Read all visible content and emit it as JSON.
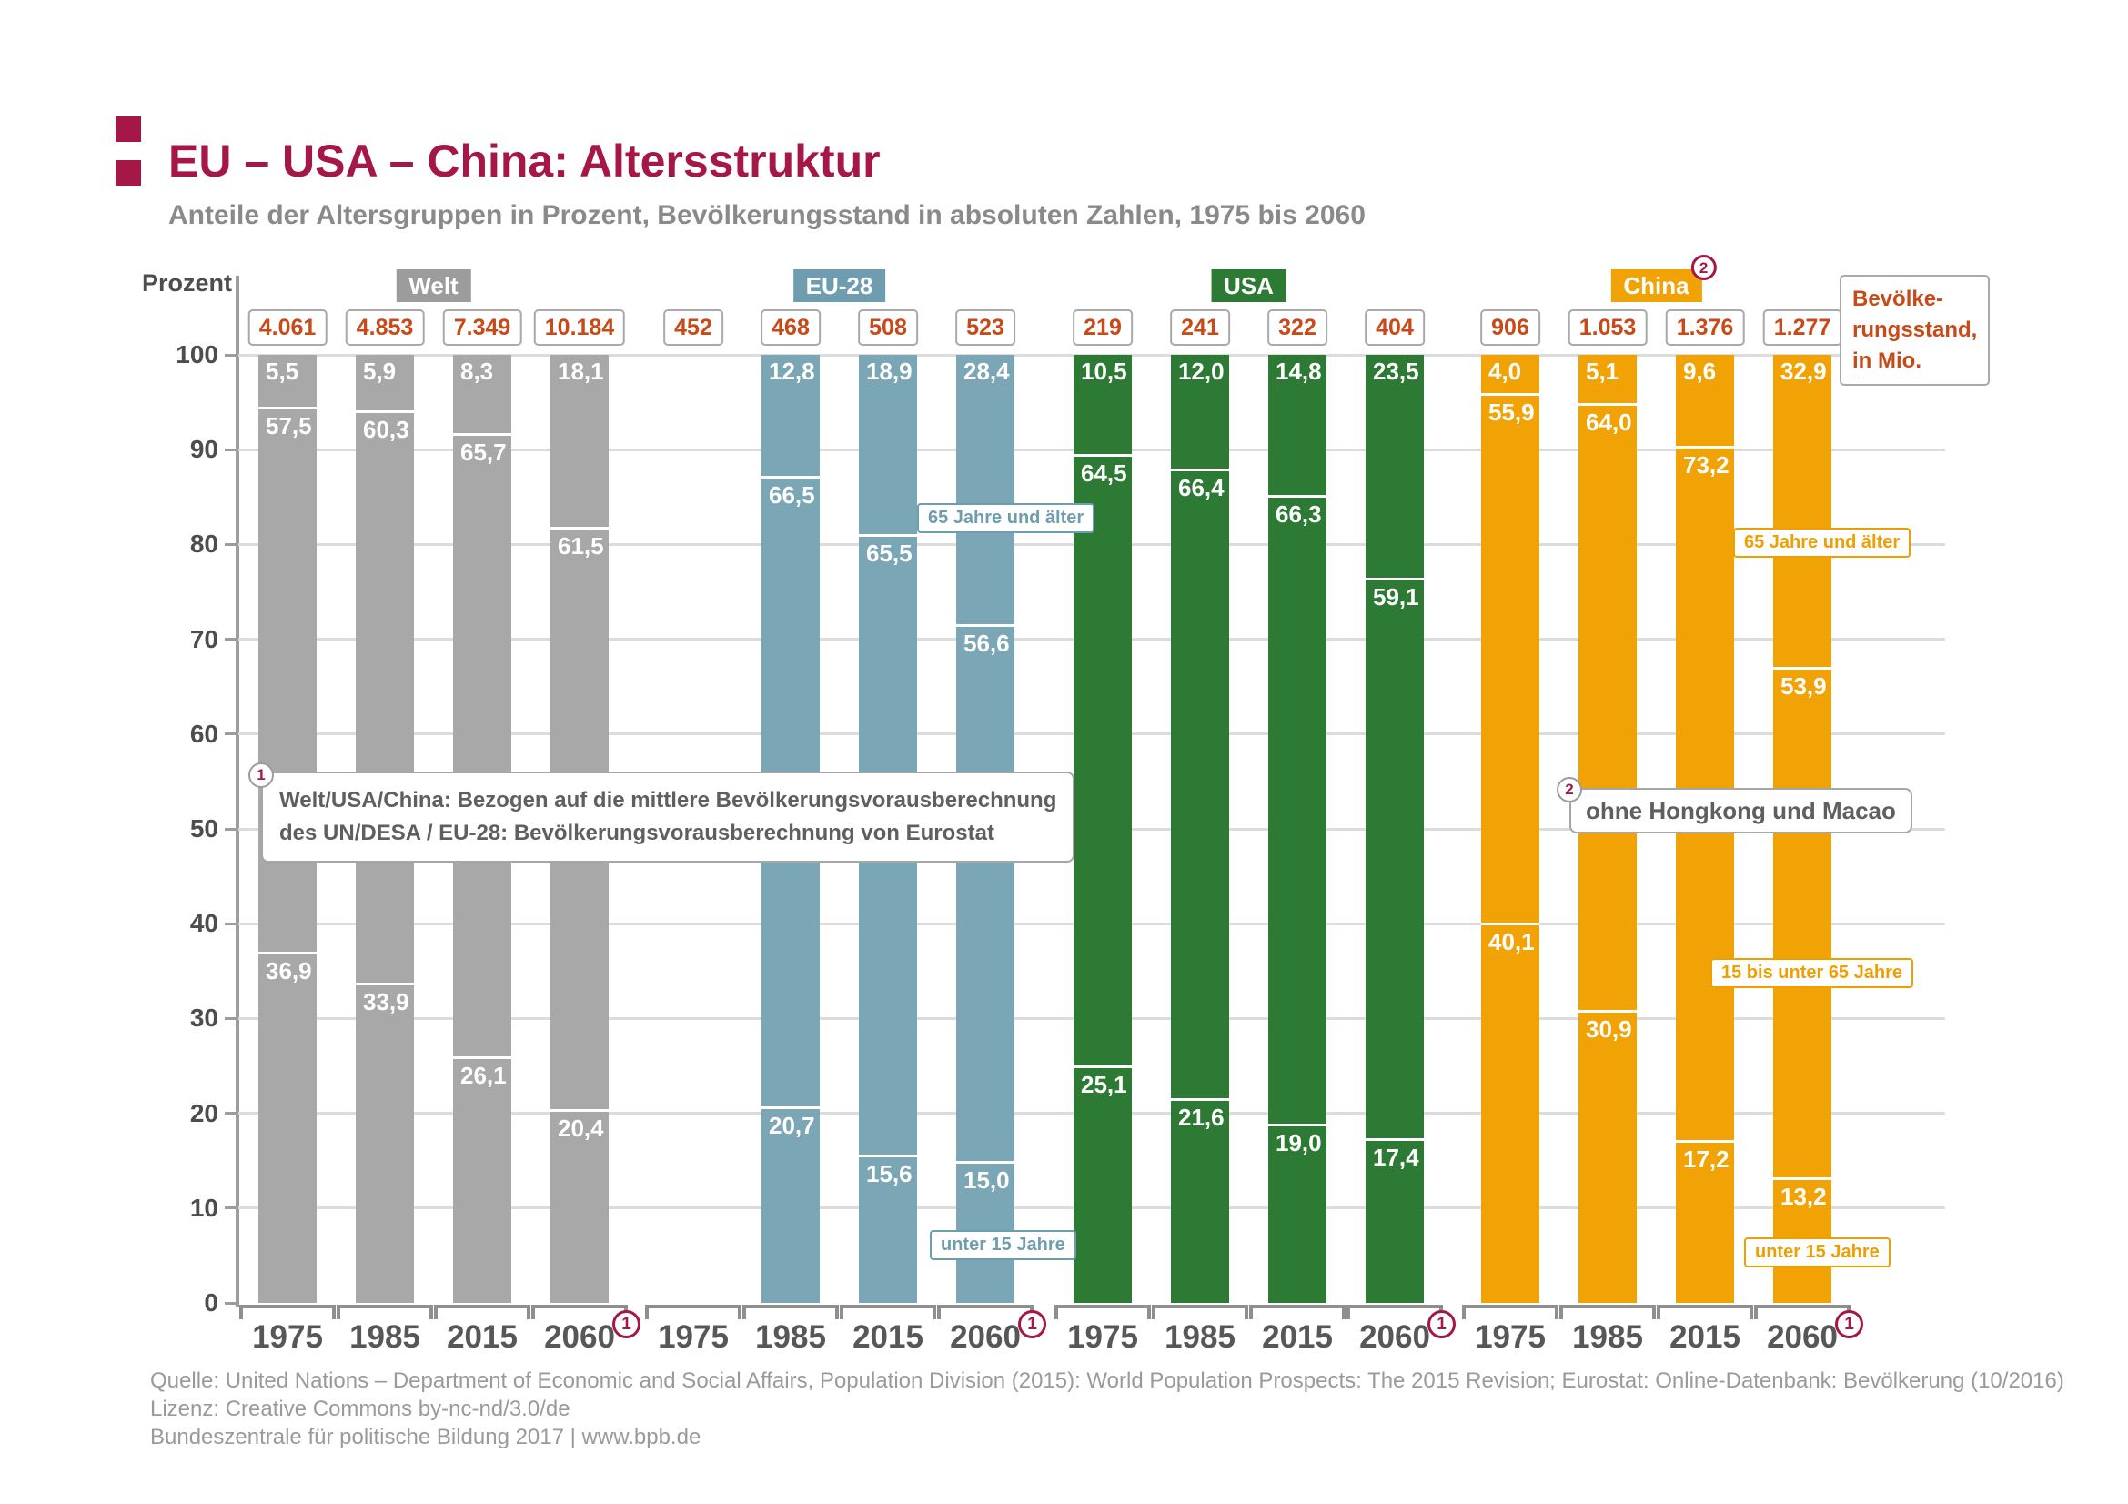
{
  "header": {
    "title": "EU – USA – China: Altersstruktur",
    "subtitle": "Anteile der Altersgruppen in Prozent, Bevölkerungsstand in absoluten Zahlen, 1975 bis 2060",
    "accent_color": "#a51747"
  },
  "axis": {
    "unit_label": "Prozent",
    "ticks": [
      100,
      90,
      80,
      70,
      60,
      50,
      40,
      30,
      20,
      10,
      0
    ]
  },
  "population_legend": {
    "lines": [
      "Bevölke-",
      "rungsstand,",
      "in Mio."
    ]
  },
  "segment_labels": {
    "eu_senior": "65 Jahre und älter",
    "eu_under15": "unter 15 Jahre",
    "china_senior": "65 Jahre und älter",
    "china_working": "15 bis unter 65 Jahre",
    "china_under15": "unter 15 Jahre"
  },
  "footnotes": [
    {
      "marker": "1",
      "lines": [
        "Welt/USA/China: Bezogen auf die mittlere Bevölkerungsvorausberechnung",
        "des UN/DESA / EU-28: Bevölkerungsvorausberechnung von Eurostat"
      ]
    },
    {
      "marker": "2",
      "text": "ohne Hongkong und Macao"
    }
  ],
  "source": {
    "lines": [
      "Quelle: United Nations – Department of Economic and Social Affairs, Population Division (2015): World Population Prospects: The 2015 Revision; Eurostat: Online-Datenbank: Bevölkerung (10/2016)",
      "Lizenz: Creative Commons by-nc-nd/3.0/de",
      "Bundeszentrale für politische Bildung 2017  |  www.bpb.de"
    ]
  },
  "chart_data": {
    "type": "bar",
    "stacked": true,
    "ylabel": "Prozent",
    "ylim": [
      0,
      100
    ],
    "grid": true,
    "categories": [
      "1975",
      "1985",
      "2015",
      "2060"
    ],
    "age_groups_bottom_to_top": [
      "unter 15 Jahre",
      "15 bis unter 65 Jahre",
      "65 Jahre und älter"
    ],
    "population_unit": "Mio.",
    "colors": {
      "welt": "#a8a8a8",
      "eu": "#7ba6b6",
      "usa": "#2c7a33",
      "china": "#f1a306",
      "population_text": "#c94a19",
      "title": "#a51747"
    },
    "groups": [
      {
        "name": "Welt",
        "bar_color": "#a8a8a8",
        "header_color": "#9c9c9c",
        "bars": [
          {
            "year": "1975",
            "population": "4.061",
            "under15": 36.9,
            "working": 57.5,
            "senior": 5.5
          },
          {
            "year": "1985",
            "population": "4.853",
            "under15": 33.9,
            "working": 60.3,
            "senior": 5.9
          },
          {
            "year": "2015",
            "population": "7.349",
            "under15": 26.1,
            "working": 65.7,
            "senior": 8.3
          },
          {
            "year": "2060",
            "population": "10.184",
            "under15": 20.4,
            "working": 61.5,
            "senior": 18.1,
            "footnote": "1"
          }
        ]
      },
      {
        "name": "EU-28",
        "bar_color": "#7ba6b6",
        "header_color": "#6e9db0",
        "bars": [
          {
            "year": "1975",
            "population": "452",
            "under15": null,
            "working": null,
            "senior": null
          },
          {
            "year": "1985",
            "population": "468",
            "under15": 20.7,
            "working": 66.5,
            "senior": 12.8
          },
          {
            "year": "2015",
            "population": "508",
            "under15": 15.6,
            "working": 65.5,
            "senior": 18.9
          },
          {
            "year": "2060",
            "population": "523",
            "under15": 15.0,
            "working": 56.6,
            "senior": 28.4,
            "footnote": "1"
          }
        ]
      },
      {
        "name": "USA",
        "bar_color": "#2c7a33",
        "header_color": "#2c7a33",
        "bars": [
          {
            "year": "1975",
            "population": "219",
            "under15": 25.1,
            "working": 64.5,
            "senior": 10.5
          },
          {
            "year": "1985",
            "population": "241",
            "under15": 21.6,
            "working": 66.4,
            "senior": 12.0
          },
          {
            "year": "2015",
            "population": "322",
            "under15": 19.0,
            "working": 66.3,
            "senior": 14.8
          },
          {
            "year": "2060",
            "population": "404",
            "under15": 17.4,
            "working": 59.1,
            "senior": 23.5,
            "footnote": "1"
          }
        ]
      },
      {
        "name": "China",
        "header_footnote": "2",
        "bar_color": "#f1a306",
        "header_color": "#f1a306",
        "bars": [
          {
            "year": "1975",
            "population": "906",
            "under15": 40.1,
            "working": 55.9,
            "senior": 4.0
          },
          {
            "year": "1985",
            "population": "1.053",
            "under15": 30.9,
            "working": 64.0,
            "senior": 5.1
          },
          {
            "year": "2015",
            "population": "1.376",
            "under15": 17.2,
            "working": 73.2,
            "senior": 9.6
          },
          {
            "year": "2060",
            "population": "1.277",
            "under15": 13.2,
            "working": 53.9,
            "senior": 32.9,
            "footnote": "1"
          }
        ]
      }
    ]
  }
}
